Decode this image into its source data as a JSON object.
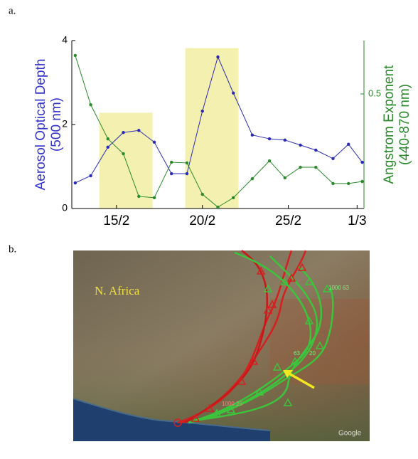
{
  "panel_labels": [
    "a.",
    "b."
  ],
  "chart_data": {
    "type": "line",
    "ylabel": [
      "Aerosol Optical Depth",
      "(500 nm)"
    ],
    "y2label": [
      "Angstrom Exponent",
      "(440-870 nm)"
    ],
    "x": [
      12.6,
      13.5,
      14.5,
      15.4,
      16.3,
      17.2,
      18.2,
      19.1,
      20.0,
      20.9,
      21.8,
      22.9,
      23.9,
      24.8,
      25.7,
      26.6,
      27.6,
      28.5,
      29.3
    ],
    "series": [
      {
        "color": "#2a2ab8",
        "values": [
          0.61,
          0.78,
          1.46,
          1.81,
          1.86,
          1.58,
          0.83,
          0.83,
          2.32,
          3.61,
          2.75,
          1.75,
          1.66,
          1.63,
          1.51,
          1.39,
          1.19,
          1.53,
          1.1
        ]
      },
      {
        "color": "#2a8a2a",
        "axis": "y2",
        "values": [
          0.668,
          0.453,
          0.304,
          0.239,
          0.053,
          0.047,
          0.202,
          0.199,
          0.062,
          0.006,
          0.047,
          0.13,
          0.208,
          0.134,
          0.18,
          0.18,
          0.109,
          0.109,
          0.118
        ]
      }
    ],
    "highlights": [
      {
        "x": [
          14.0,
          17.1
        ],
        "y": 2.28
      },
      {
        "x": [
          19.0,
          22.1
        ],
        "y": 3.82
      }
    ],
    "highlight_color": "#f3f0b0",
    "xlim": [
      12.4,
      29.4
    ],
    "xticks": [
      {
        "value": 15,
        "label": "15/2"
      },
      {
        "value": 20,
        "label": "20/2"
      },
      {
        "value": 25,
        "label": "25/2"
      },
      {
        "value": 29,
        "label": "1/3"
      }
    ],
    "ylim": [
      0,
      4
    ],
    "yticks": [
      0,
      2,
      4
    ],
    "y2lim": [
      0,
      0.733
    ],
    "y2ticks": [
      0.5
    ]
  },
  "map": {
    "region_label": "N. Africa",
    "credit": "Google",
    "annotations": [
      "1000 63",
      "63",
      "20",
      "1000 25"
    ]
  }
}
